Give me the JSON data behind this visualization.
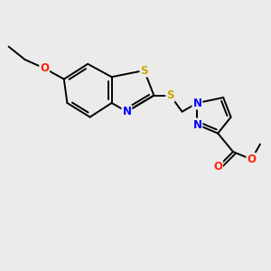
{
  "background_color": "#ebebeb",
  "atom_colors": {
    "N": "#0000ff",
    "O": "#ff2200",
    "S": "#ccaa00"
  },
  "bond_color": "#000000",
  "bond_width": 1.4,
  "font_size": 8.5,
  "figsize": [
    3.0,
    3.0
  ],
  "dpi": 100,
  "xlim": [
    0,
    10
  ],
  "ylim": [
    0,
    10
  ]
}
